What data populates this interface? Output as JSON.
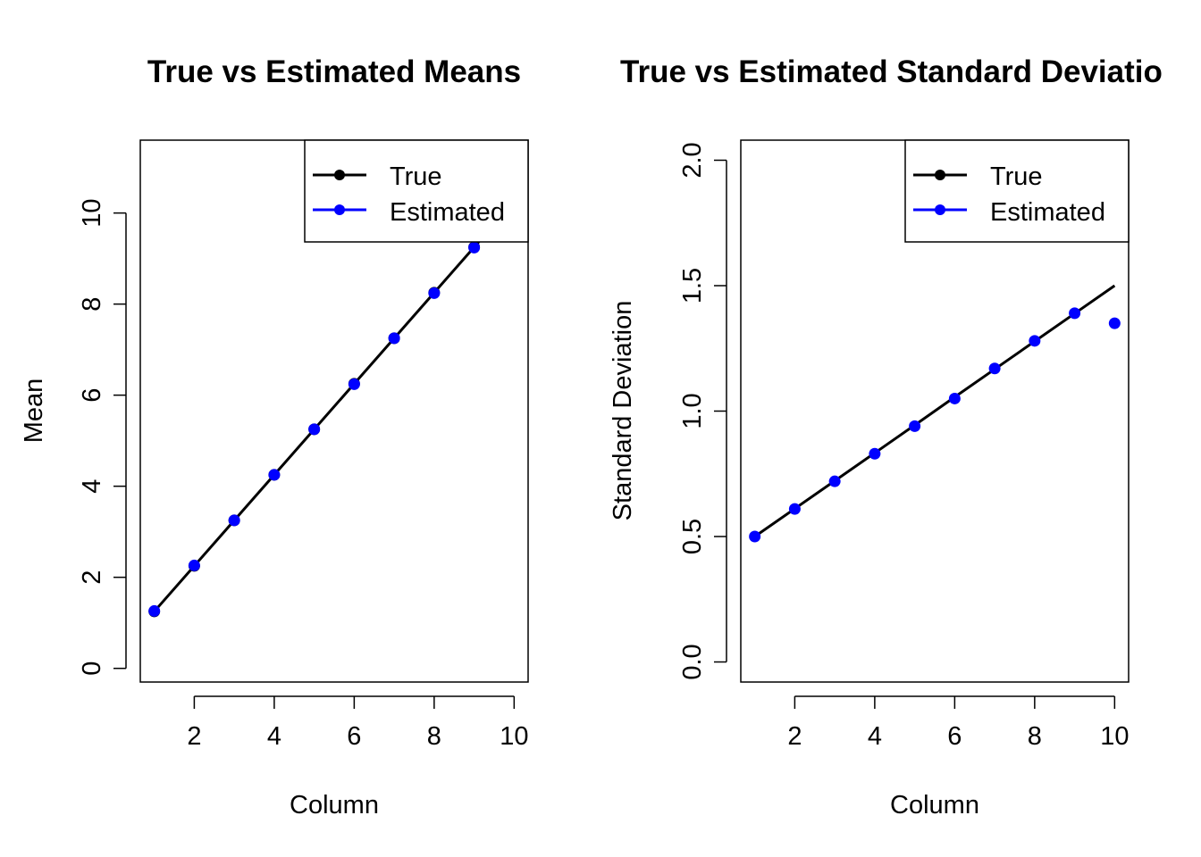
{
  "chart_data": [
    {
      "type": "line",
      "title": "True vs Estimated Means",
      "xlabel": "Column",
      "ylabel": "Mean",
      "xlim": [
        0.65,
        10.35
      ],
      "ylim": [
        -0.3,
        11.6
      ],
      "xticks": [
        2,
        4,
        6,
        8,
        10
      ],
      "yticks": [
        0,
        2,
        4,
        6,
        8,
        10
      ],
      "grid": false,
      "legend_position": "top-right",
      "colors": {
        "True": "#000000",
        "Estimated": "#0000ff"
      },
      "series": [
        {
          "name": "True",
          "style": "line-with-points",
          "x": [
            1,
            2,
            3,
            4,
            5,
            6,
            7,
            8,
            9,
            10
          ],
          "values": [
            1.25,
            2.25,
            3.25,
            4.25,
            5.25,
            6.25,
            7.25,
            8.25,
            9.25,
            10.25
          ]
        },
        {
          "name": "Estimated",
          "style": "points",
          "x": [
            1,
            2,
            3,
            4,
            5,
            6,
            7,
            8,
            9,
            10
          ],
          "values": [
            1.26,
            2.26,
            3.25,
            4.25,
            5.25,
            6.24,
            7.25,
            8.24,
            9.24,
            10.25
          ]
        }
      ]
    },
    {
      "type": "line",
      "title": "True vs Estimated Standard Deviatio",
      "xlabel": "Column",
      "ylabel": "Standard Deviation",
      "xlim": [
        0.65,
        10.35
      ],
      "ylim": [
        -0.08,
        2.08
      ],
      "xticks": [
        2,
        4,
        6,
        8,
        10
      ],
      "yticks": [
        0.0,
        0.5,
        1.0,
        1.5,
        2.0
      ],
      "ytick_labels": [
        "0.0",
        "0.5",
        "1.0",
        "1.5",
        "2.0"
      ],
      "grid": false,
      "legend_position": "top-right",
      "colors": {
        "True": "#000000",
        "Estimated": "#0000ff"
      },
      "series": [
        {
          "name": "True",
          "style": "line",
          "x": [
            1,
            2,
            3,
            4,
            5,
            6,
            7,
            8,
            9,
            10
          ],
          "values": [
            0.5,
            0.611,
            0.722,
            0.833,
            0.944,
            1.056,
            1.167,
            1.278,
            1.389,
            1.5
          ]
        },
        {
          "name": "Estimated",
          "style": "points",
          "x": [
            1,
            2,
            3,
            4,
            5,
            6,
            7,
            8,
            9,
            10
          ],
          "values": [
            0.5,
            0.61,
            0.72,
            0.83,
            0.94,
            1.05,
            1.17,
            1.28,
            1.39,
            1.35
          ]
        }
      ]
    }
  ]
}
